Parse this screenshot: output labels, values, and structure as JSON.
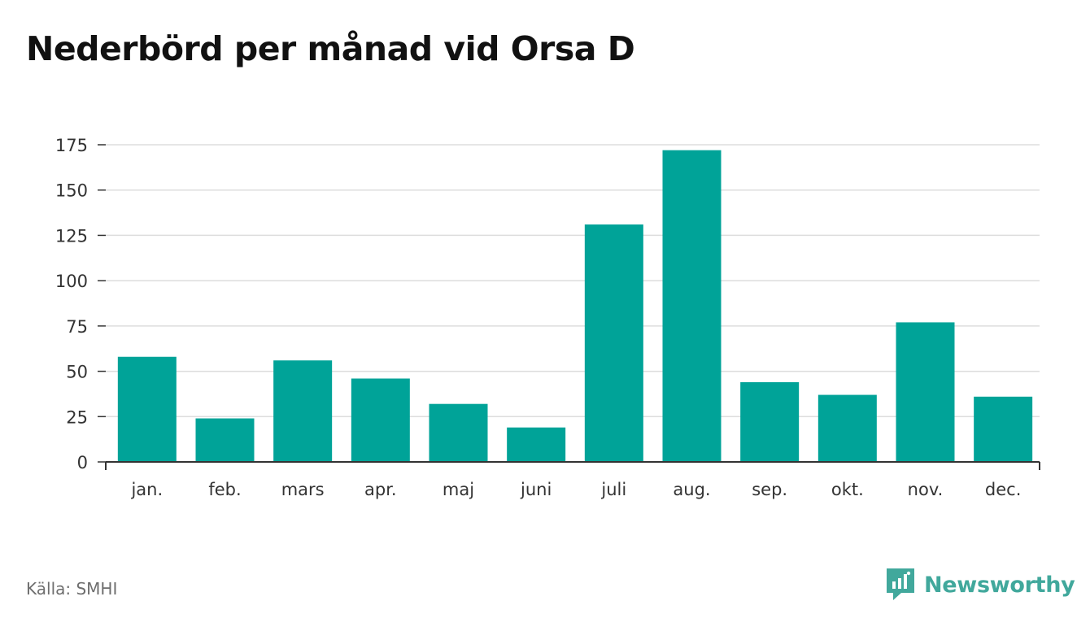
{
  "title": "Nederbörd per månad vid Orsa D",
  "source": "Källa: SMHI",
  "brand": {
    "name": "Newsworthy",
    "icon": "newsworthy-logo-icon",
    "color": "#41a89c"
  },
  "colors": {
    "bar": "#00a398",
    "grid": "#dddddd",
    "axis": "#333333"
  },
  "chart_data": {
    "type": "bar",
    "categories": [
      "jan.",
      "feb.",
      "mars",
      "apr.",
      "maj",
      "juni",
      "juli",
      "aug.",
      "sep.",
      "okt.",
      "nov.",
      "dec."
    ],
    "values": [
      58,
      24,
      56,
      46,
      32,
      19,
      131,
      172,
      44,
      37,
      77,
      36
    ],
    "yticks": [
      0,
      25,
      50,
      75,
      100,
      125,
      150,
      175
    ],
    "ylim": [
      0,
      175
    ],
    "grid": true,
    "legend": "none"
  }
}
